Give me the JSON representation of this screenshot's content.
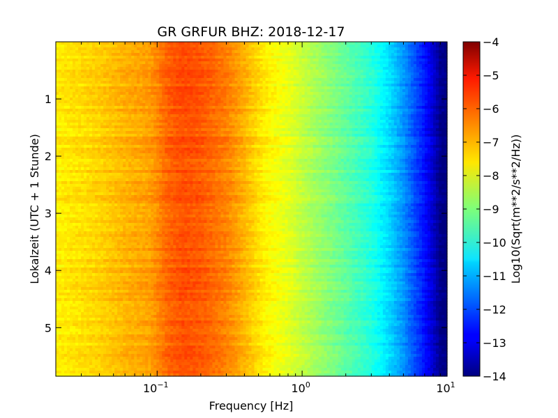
{
  "chart_data": {
    "type": "heatmap",
    "title": "GR GRFUR BHZ: 2018-12-17",
    "xlabel": "Frequency [Hz]",
    "ylabel": "Lokalzeit (UTC + 1 Stunde)",
    "x_scale": "log",
    "xlim": [
      0.02,
      10
    ],
    "x_ticks": [
      {
        "value": 0.1,
        "base": "10",
        "exp": "−1"
      },
      {
        "value": 1,
        "base": "10",
        "exp": "0"
      },
      {
        "value": 10,
        "base": "10",
        "exp": "1"
      }
    ],
    "ylim": [
      0,
      5.85
    ],
    "y_inverted": true,
    "y_ticks": [
      1,
      2,
      3,
      4,
      5
    ],
    "colorbar": {
      "label": "Log10(Sqrt(m**2/s**2/Hz))",
      "colormap": "jet",
      "range": [
        -14,
        -4
      ],
      "ticks": [
        "−4",
        "−5",
        "−6",
        "−7",
        "−8",
        "−9",
        "−10",
        "−11",
        "−12",
        "−13",
        "−14"
      ]
    },
    "spectrum_profile": {
      "frequency_hz": [
        0.02,
        0.04,
        0.06,
        0.09,
        0.12,
        0.15,
        0.2,
        0.3,
        0.4,
        0.55,
        0.8,
        1.2,
        2,
        3,
        4,
        5,
        6,
        7,
        8,
        9,
        10
      ],
      "log10_amplitude": [
        -7.6,
        -7.3,
        -7.0,
        -6.8,
        -6.2,
        -6.0,
        -6.1,
        -6.5,
        -7.0,
        -7.6,
        -8.0,
        -8.6,
        -9.3,
        -9.9,
        -10.6,
        -11.3,
        -12.0,
        -12.6,
        -13.2,
        -13.9,
        -14.0
      ]
    }
  }
}
